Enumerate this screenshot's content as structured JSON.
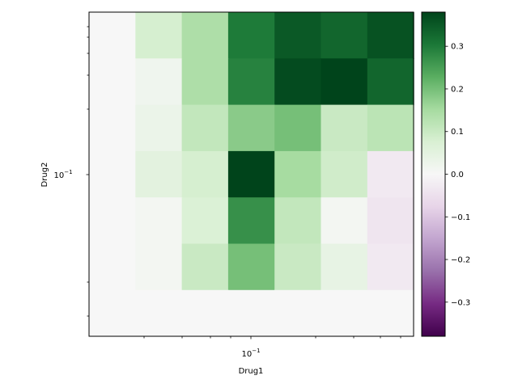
{
  "chart_data": {
    "type": "heatmap",
    "xlabel": "Drug1",
    "ylabel": "Drug2",
    "x_scale": "log",
    "y_scale": "log",
    "x_tick_label": "10^{−1}",
    "y_tick_label": "10^{−1}",
    "colormap": "PRGn",
    "clim": [
      -0.38,
      0.38
    ],
    "colorbar_ticks": [
      "−0.3",
      "−0.2",
      "−0.1",
      "0.0",
      "0.1",
      "0.2",
      "0.3"
    ],
    "colorbar_tick_values": [
      -0.3,
      -0.2,
      -0.1,
      0.0,
      0.1,
      0.2,
      0.3
    ],
    "rows_top_to_bottom": [
      [
        0.0,
        0.08,
        0.14,
        0.3,
        0.35,
        0.33,
        0.36
      ],
      [
        0.0,
        0.02,
        0.14,
        0.29,
        0.37,
        0.38,
        0.33
      ],
      [
        0.0,
        0.03,
        0.11,
        0.18,
        0.2,
        0.1,
        0.12
      ],
      [
        0.0,
        0.05,
        0.08,
        0.38,
        0.15,
        0.09,
        -0.03
      ],
      [
        0.0,
        0.01,
        0.07,
        0.27,
        0.11,
        0.01,
        -0.04
      ],
      [
        0.0,
        0.01,
        0.1,
        0.2,
        0.1,
        0.04,
        -0.03
      ],
      [
        0.0,
        0.0,
        0.0,
        0.0,
        0.0,
        0.0,
        0.0
      ]
    ]
  }
}
